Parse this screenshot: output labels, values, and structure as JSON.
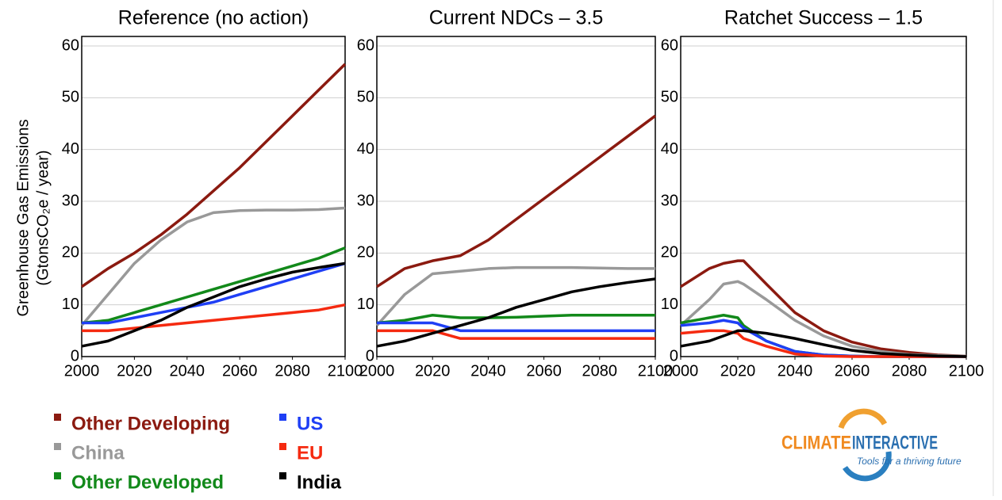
{
  "ylabel": [
    "Greenhouse Gas Emissions",
    "(GtonsCO₂e / year)"
  ],
  "logo": {
    "word1": "CLIMATE",
    "word2": "INTERACTIVE",
    "tagline": "Tools for a thriving future"
  },
  "chart_data": [
    {
      "type": "line",
      "title": "Reference (no action)",
      "xlim": [
        2000,
        2100
      ],
      "ylim": [
        0,
        60
      ],
      "xticks": [
        2000,
        2020,
        2040,
        2060,
        2080,
        2100
      ],
      "yticks": [
        0,
        10,
        20,
        30,
        40,
        50,
        60
      ],
      "grid": true,
      "x": [
        2000,
        2010,
        2020,
        2030,
        2040,
        2050,
        2060,
        2070,
        2080,
        2090,
        2100
      ],
      "series": [
        {
          "name": "Other Developing",
          "color": "#8b1a10",
          "values": [
            13.5,
            17,
            20,
            23.5,
            27.5,
            32,
            36.5,
            41.5,
            46.5,
            51.5,
            56.5
          ]
        },
        {
          "name": "China",
          "color": "#999999",
          "values": [
            6,
            12,
            18,
            22.5,
            26,
            27.8,
            28.2,
            28.3,
            28.3,
            28.4,
            28.7
          ]
        },
        {
          "name": "Other Developed",
          "color": "#12891a",
          "values": [
            6.5,
            7,
            8.5,
            10,
            11.5,
            13,
            14.5,
            16,
            17.5,
            19,
            21
          ]
        },
        {
          "name": "US",
          "color": "#1f3ff5",
          "values": [
            6.5,
            6.5,
            7.5,
            8.5,
            9.5,
            10.5,
            12,
            13.5,
            15,
            16.5,
            18
          ]
        },
        {
          "name": "EU",
          "color": "#f52a10",
          "values": [
            5,
            5,
            5.5,
            6,
            6.5,
            7,
            7.5,
            8,
            8.5,
            9,
            10
          ]
        },
        {
          "name": "India",
          "color": "#000000",
          "values": [
            2,
            3,
            5,
            7,
            9.5,
            11.5,
            13.5,
            15,
            16.3,
            17.2,
            18
          ]
        }
      ]
    },
    {
      "type": "line",
      "title": "Current NDCs – 3.5",
      "xlim": [
        2000,
        2100
      ],
      "ylim": [
        0,
        60
      ],
      "xticks": [
        2000,
        2020,
        2040,
        2060,
        2080,
        2100
      ],
      "yticks": [
        0,
        10,
        20,
        30,
        40,
        50,
        60
      ],
      "grid": true,
      "x": [
        2000,
        2010,
        2020,
        2030,
        2040,
        2050,
        2060,
        2070,
        2080,
        2090,
        2100
      ],
      "series": [
        {
          "name": "Other Developing",
          "color": "#8b1a10",
          "values": [
            13.5,
            17,
            18.5,
            19.5,
            22.5,
            26.5,
            30.5,
            34.5,
            38.5,
            42.5,
            46.5
          ]
        },
        {
          "name": "China",
          "color": "#999999",
          "values": [
            6,
            12,
            16,
            16.5,
            17,
            17.2,
            17.2,
            17.2,
            17.1,
            17,
            17
          ]
        },
        {
          "name": "Other Developed",
          "color": "#12891a",
          "values": [
            6.5,
            7,
            8,
            7.5,
            7.5,
            7.6,
            7.8,
            8,
            8,
            8,
            8
          ]
        },
        {
          "name": "US",
          "color": "#1f3ff5",
          "values": [
            6.5,
            6.5,
            6.5,
            5,
            5,
            5,
            5,
            5,
            5,
            5,
            5
          ]
        },
        {
          "name": "EU",
          "color": "#f52a10",
          "values": [
            5,
            5,
            5,
            3.5,
            3.5,
            3.5,
            3.5,
            3.5,
            3.5,
            3.5,
            3.5
          ]
        },
        {
          "name": "India",
          "color": "#000000",
          "values": [
            2,
            3,
            4.5,
            6,
            7.5,
            9.5,
            11,
            12.5,
            13.5,
            14.3,
            15
          ]
        }
      ]
    },
    {
      "type": "line",
      "title": "Ratchet Success – 1.5",
      "xlim": [
        2000,
        2100
      ],
      "ylim": [
        0,
        60
      ],
      "xticks": [
        2000,
        2020,
        2040,
        2060,
        2080,
        2100
      ],
      "yticks": [
        0,
        10,
        20,
        30,
        40,
        50,
        60
      ],
      "grid": true,
      "x": [
        2000,
        2010,
        2015,
        2020,
        2022,
        2030,
        2040,
        2050,
        2060,
        2070,
        2080,
        2090,
        2100
      ],
      "series": [
        {
          "name": "Other Developing",
          "color": "#8b1a10",
          "values": [
            13.5,
            17,
            18,
            18.5,
            18.5,
            14,
            8.5,
            5,
            2.8,
            1.5,
            0.8,
            0.3,
            0.1
          ]
        },
        {
          "name": "China",
          "color": "#999999",
          "values": [
            6,
            11,
            14,
            14.5,
            14,
            11,
            7,
            4,
            2,
            1,
            0.4,
            0.2,
            0.1
          ]
        },
        {
          "name": "Other Developed",
          "color": "#12891a",
          "values": [
            6.5,
            7.5,
            8,
            7.5,
            6,
            3,
            1,
            0.3,
            0.1,
            0,
            0,
            0,
            0
          ]
        },
        {
          "name": "US",
          "color": "#1f3ff5",
          "values": [
            6,
            6.5,
            7,
            6.5,
            5.5,
            3,
            1,
            0.3,
            0.1,
            0,
            0,
            0,
            0
          ]
        },
        {
          "name": "EU",
          "color": "#f52a10",
          "values": [
            4.5,
            5,
            5,
            4.5,
            3.5,
            2,
            0.5,
            0.1,
            0,
            0,
            0,
            0,
            0
          ]
        },
        {
          "name": "India",
          "color": "#000000",
          "values": [
            2,
            3,
            4,
            5,
            5,
            4.5,
            3.5,
            2.3,
            1.2,
            0.6,
            0.3,
            0.1,
            0
          ]
        }
      ]
    }
  ]
}
